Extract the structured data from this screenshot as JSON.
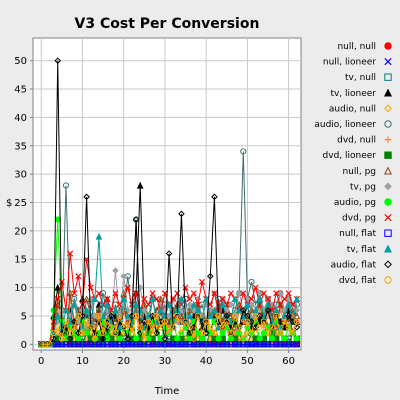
{
  "chart_data": {
    "type": "line",
    "title": "V3 Cost Per Conversion",
    "xlabel": "Time",
    "ylabel": "$",
    "xlim": [
      -2,
      63
    ],
    "ylim": [
      -1,
      54
    ],
    "xticks": [
      "0",
      "10",
      "20",
      "30",
      "40",
      "50",
      "60"
    ],
    "yticks": [
      "0",
      "5",
      "10",
      "15",
      "20",
      "25",
      "30",
      "35",
      "40",
      "45",
      "50"
    ],
    "grid": true,
    "legend_position": "right",
    "series": [
      {
        "name": "null, null",
        "color": "#ff0000",
        "marker": "circle-filled",
        "values": [
          0,
          0,
          0,
          0,
          0,
          0,
          0,
          0,
          0,
          0,
          0,
          0,
          0,
          0,
          0,
          0,
          0,
          0,
          0,
          0,
          0,
          0,
          0,
          0,
          0,
          0,
          0,
          0,
          0,
          0,
          0,
          0,
          0,
          0,
          0,
          0,
          0,
          0,
          0,
          0,
          0,
          0,
          0,
          0,
          0,
          0,
          0,
          0,
          0,
          0,
          0,
          0,
          0,
          0,
          0,
          0,
          0,
          0,
          0,
          0,
          0,
          0,
          0
        ]
      },
      {
        "name": "null, lioneer",
        "color": "#0000ff",
        "marker": "x",
        "values": [
          0,
          0,
          0,
          0,
          0,
          0,
          0,
          0,
          0,
          0,
          0,
          0,
          0,
          0,
          0,
          0,
          0,
          0,
          0,
          0,
          0,
          0,
          0,
          0,
          0,
          0,
          0,
          0,
          0,
          0,
          0,
          0,
          0,
          0,
          0,
          0,
          0,
          0,
          0,
          0,
          0,
          0,
          0,
          0,
          0,
          0,
          0,
          0,
          0,
          0,
          0,
          0,
          0,
          0,
          0,
          0,
          0,
          0,
          0,
          0,
          0,
          0,
          0
        ]
      },
      {
        "name": "tv, null",
        "color": "#008080",
        "marker": "square",
        "values": [
          0,
          0,
          0,
          0,
          1,
          0,
          2,
          1,
          0,
          0,
          1,
          0,
          0,
          1,
          0,
          0,
          1,
          0,
          0,
          0,
          1,
          0,
          0,
          1,
          0,
          0,
          0,
          1,
          0,
          0,
          0,
          1,
          0,
          0,
          0,
          1,
          0,
          0,
          0,
          1,
          0,
          0,
          0,
          0,
          1,
          0,
          0,
          0,
          1,
          0,
          0,
          0,
          1,
          0,
          0,
          0,
          1,
          0,
          0,
          0,
          1,
          0,
          0
        ]
      },
      {
        "name": "tv, lioneer",
        "color": "#000000",
        "marker": "triangle-filled",
        "values": [
          0,
          0,
          0,
          5,
          10,
          3,
          1,
          6,
          2,
          4,
          8,
          5,
          3,
          2,
          7,
          1,
          4,
          3,
          5,
          2,
          6,
          4,
          3,
          9,
          28,
          5,
          3,
          4,
          2,
          6,
          3,
          4,
          5,
          7,
          4,
          3,
          2,
          5,
          6,
          3,
          4,
          2,
          5,
          3,
          6,
          4,
          3,
          5,
          2,
          4,
          7,
          3,
          5,
          4,
          6,
          3,
          2,
          5,
          4,
          3,
          6,
          2,
          4
        ]
      },
      {
        "name": "audio, null",
        "color": "#ffa500",
        "marker": "diamond",
        "values": [
          0,
          0,
          0,
          0,
          2,
          1,
          0,
          3,
          1,
          2,
          0,
          1,
          2,
          0,
          1,
          3,
          0,
          2,
          1,
          0,
          2,
          1,
          3,
          0,
          1,
          2,
          0,
          1,
          3,
          1,
          0,
          2,
          1,
          0,
          2,
          1,
          0,
          3,
          1,
          2,
          0,
          1,
          2,
          0,
          1,
          3,
          0,
          2,
          1,
          0,
          2,
          1,
          3,
          0,
          1,
          2,
          0,
          1,
          3,
          1,
          0,
          2,
          1
        ]
      },
      {
        "name": "audio, lioneer",
        "color": "#407070",
        "marker": "circle",
        "values": [
          0,
          0,
          0,
          1,
          5,
          3,
          28,
          4,
          8,
          6,
          3,
          5,
          7,
          4,
          6,
          9,
          5,
          3,
          7,
          4,
          6,
          12,
          5,
          22,
          4,
          6,
          3,
          8,
          5,
          4,
          7,
          3,
          6,
          5,
          4,
          8,
          3,
          6,
          5,
          7,
          4,
          6,
          5,
          8,
          4,
          7,
          5,
          6,
          9,
          34,
          8,
          11,
          7,
          9,
          6,
          8,
          5,
          7,
          9,
          6,
          8,
          5,
          7
        ]
      },
      {
        "name": "dvd, null",
        "color": "#ff8040",
        "marker": "plus",
        "values": [
          0,
          0,
          0,
          2,
          6,
          4,
          1,
          8,
          3,
          5,
          2,
          6,
          4,
          3,
          5,
          2,
          7,
          4,
          3,
          5,
          6,
          3,
          4,
          5,
          2,
          6,
          4,
          3,
          5,
          7,
          4,
          3,
          5,
          6,
          4,
          3,
          5,
          2,
          6,
          4,
          3,
          5,
          4,
          6,
          3,
          5,
          4,
          2,
          6,
          4,
          3,
          5,
          4,
          6,
          3,
          5,
          4,
          2,
          6,
          4,
          3,
          5,
          4
        ]
      },
      {
        "name": "dvd, lioneer",
        "color": "#008000",
        "marker": "square-filled",
        "values": [
          0,
          0,
          0,
          0,
          1,
          0,
          2,
          1,
          0,
          1,
          0,
          2,
          1,
          0,
          1,
          0,
          2,
          1,
          0,
          1,
          0,
          2,
          1,
          0,
          1,
          0,
          2,
          1,
          0,
          1,
          0,
          2,
          1,
          0,
          1,
          0,
          2,
          1,
          0,
          1,
          0,
          2,
          1,
          0,
          1,
          0,
          2,
          1,
          0,
          1,
          0,
          2,
          1,
          0,
          1,
          0,
          2,
          1,
          0,
          1,
          0,
          2,
          1
        ]
      },
      {
        "name": "null, pg",
        "color": "#8b4513",
        "marker": "triangle",
        "values": [
          0,
          0,
          0,
          3,
          7,
          5,
          2,
          9,
          4,
          6,
          3,
          8,
          5,
          4,
          6,
          3,
          8,
          5,
          4,
          6,
          9,
          4,
          5,
          6,
          3,
          7,
          5,
          4,
          6,
          8,
          5,
          4,
          6,
          7,
          5,
          4,
          6,
          3,
          7,
          5,
          4,
          6,
          5,
          7,
          4,
          6,
          5,
          3,
          7,
          5,
          4,
          6,
          5,
          7,
          4,
          6,
          5,
          3,
          7,
          5,
          4,
          6,
          5
        ]
      },
      {
        "name": "tv, pg",
        "color": "#a0a0a0",
        "marker": "diamond-filled",
        "values": [
          0,
          0,
          0,
          2,
          4,
          6,
          3,
          5,
          7,
          4,
          6,
          3,
          8,
          5,
          4,
          7,
          6,
          5,
          13,
          4,
          12,
          6,
          5,
          7,
          10,
          6,
          5,
          8,
          4,
          7,
          6,
          5,
          8,
          4,
          6,
          5,
          7,
          6,
          8,
          5,
          7,
          6,
          9,
          5,
          8,
          6,
          7,
          5,
          9,
          6,
          8,
          7,
          5,
          9,
          6,
          8,
          7,
          5,
          9,
          6,
          8,
          7,
          6
        ]
      },
      {
        "name": "audio, pg",
        "color": "#00ff00",
        "marker": "circle-filled",
        "values": [
          0,
          0,
          0,
          6,
          22,
          4,
          1,
          3,
          2,
          1,
          4,
          2,
          3,
          1,
          2,
          4,
          1,
          3,
          2,
          1,
          3,
          2,
          4,
          1,
          2,
          3,
          1,
          4,
          2,
          1,
          3,
          2,
          4,
          1,
          2,
          3,
          1,
          4,
          2,
          1,
          3,
          2,
          4,
          1,
          2,
          3,
          1,
          4,
          2,
          1,
          3,
          2,
          4,
          1,
          2,
          3,
          1,
          4,
          2,
          1,
          3,
          2,
          1
        ]
      },
      {
        "name": "dvd, pg",
        "color": "#ff0000",
        "marker": "x",
        "values": [
          0,
          0,
          0,
          4,
          8,
          11,
          6,
          16,
          9,
          12,
          7,
          15,
          10,
          8,
          9,
          7,
          8,
          6,
          9,
          7,
          8,
          10,
          7,
          9,
          6,
          8,
          7,
          9,
          8,
          6,
          9,
          7,
          8,
          9,
          7,
          10,
          8,
          9,
          7,
          11,
          8,
          7,
          9,
          6,
          8,
          7,
          9,
          8,
          6,
          9,
          7,
          8,
          10,
          7,
          9,
          8,
          6,
          9,
          7,
          8,
          9,
          7,
          8
        ]
      },
      {
        "name": "null, flat",
        "color": "#0000ff",
        "marker": "square",
        "values": [
          0,
          0,
          0,
          0,
          0,
          0,
          0,
          0,
          0,
          0,
          0,
          0,
          0,
          0,
          0,
          0,
          0,
          0,
          0,
          0,
          0,
          0,
          0,
          0,
          0,
          0,
          0,
          0,
          0,
          0,
          0,
          0,
          0,
          0,
          0,
          0,
          0,
          0,
          0,
          0,
          0,
          0,
          0,
          0,
          0,
          0,
          0,
          0,
          0,
          0,
          0,
          0,
          0,
          0,
          0,
          0,
          0,
          0,
          0,
          0,
          0,
          0,
          0
        ]
      },
      {
        "name": "tv, flat",
        "color": "#00a0a0",
        "marker": "triangle-filled",
        "values": [
          0,
          0,
          0,
          2,
          5,
          3,
          6,
          4,
          7,
          5,
          3,
          6,
          4,
          8,
          19,
          5,
          7,
          4,
          6,
          3,
          8,
          5,
          4,
          7,
          6,
          3,
          5,
          8,
          4,
          6,
          5,
          7,
          3,
          6,
          8,
          4,
          5,
          7,
          6,
          4,
          8,
          5,
          6,
          3,
          7,
          5,
          4,
          8,
          6,
          5,
          7,
          4,
          6,
          8,
          5,
          7,
          4,
          6,
          3,
          5,
          7,
          4,
          8
        ]
      },
      {
        "name": "audio, flat",
        "color": "#000000",
        "marker": "diamond",
        "values": [
          0,
          0,
          0,
          1,
          50,
          2,
          3,
          1,
          4,
          2,
          5,
          26,
          3,
          2,
          4,
          1,
          3,
          5,
          2,
          4,
          3,
          1,
          5,
          22,
          2,
          4,
          3,
          5,
          2,
          4,
          1,
          16,
          3,
          5,
          23,
          4,
          2,
          3,
          5,
          4,
          2,
          12,
          26,
          4,
          3,
          5,
          2,
          4,
          3,
          6,
          5,
          4,
          3,
          5,
          4,
          6,
          3,
          5,
          4,
          3,
          5,
          4,
          3
        ]
      },
      {
        "name": "dvd, flat",
        "color": "#ffa500",
        "marker": "circle",
        "values": [
          0,
          0,
          0,
          2,
          3,
          1,
          4,
          2,
          3,
          5,
          2,
          4,
          3,
          1,
          5,
          2,
          4,
          3,
          2,
          5,
          3,
          4,
          2,
          5,
          3,
          1,
          4,
          2,
          5,
          3,
          4,
          2,
          3,
          5,
          2,
          4,
          3,
          1,
          5,
          2,
          4,
          3,
          2,
          5,
          3,
          4,
          2,
          5,
          3,
          1,
          4,
          2,
          5,
          3,
          4,
          2,
          3,
          5,
          2,
          4,
          3,
          2,
          4
        ]
      }
    ]
  }
}
